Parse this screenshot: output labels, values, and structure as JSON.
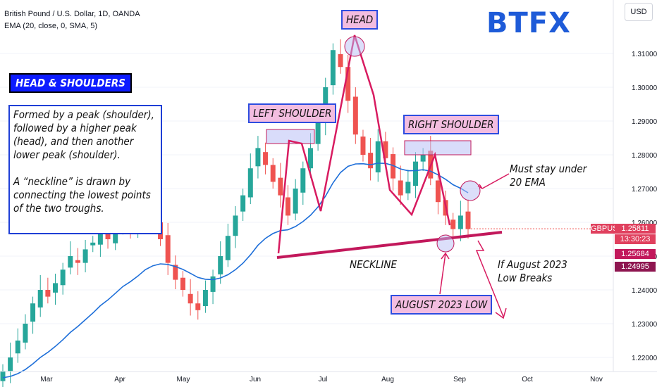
{
  "header": {
    "symbol_line": "British Pound / U.S. Dollar, 1D, OANDA",
    "indicator_line": "EMA (20, close, 0, SMA, 5)"
  },
  "logo": "BTFX",
  "currency": "USD",
  "annotations": {
    "title": "HEAD & SHOULDERS",
    "desc1": "Formed by a peak (shoulder), followed by a higher peak (head), and then another lower peak (shoulder).",
    "desc2": "A “neckline” is drawn by connecting the lowest points of the two troughs.",
    "head": "HEAD",
    "left_shoulder": "LEFT SHOULDER",
    "right_shoulder": "RIGHT SHOULDER",
    "must_stay": "Must stay under 20 EMA",
    "neckline": "NECKLINE",
    "if_breaks": "If August 2023 Low Breaks",
    "aug_low": "AUGUST 2023 LOW"
  },
  "price_tags": {
    "symbol": "GBPUSD",
    "last": "1.25811",
    "countdown": "13:30:23",
    "level1": "1.25684",
    "level2": "1.24995"
  },
  "colors": {
    "bull": "#26a69a",
    "bear": "#ef5350",
    "ema": "#1e6fd9",
    "pattern": "#d81b60",
    "neckline": "#c2185b",
    "highlight": "#b9c0f5"
  },
  "chart_data": {
    "type": "candlestick",
    "title": "British Pound / U.S. Dollar, 1D, OANDA",
    "x_ticks": [
      "Mar",
      "Apr",
      "May",
      "Jun",
      "Jul",
      "Aug",
      "Sep",
      "Oct",
      "Nov"
    ],
    "y_ticks": [
      "1.22000",
      "1.23000",
      "1.24000",
      "1.25000",
      "1.26000",
      "1.27000",
      "1.28000",
      "1.29000",
      "1.30000",
      "1.31000"
    ],
    "ylim": [
      1.218,
      1.318
    ],
    "approx_closes": [
      1.216,
      1.22,
      1.225,
      1.23,
      1.236,
      1.24,
      1.238,
      1.242,
      1.246,
      1.25,
      1.248,
      1.252,
      1.254,
      1.258,
      1.255,
      1.26,
      1.262,
      1.258,
      1.262,
      1.266,
      1.26,
      1.255,
      1.248,
      1.243,
      1.24,
      1.236,
      1.234,
      1.24,
      1.244,
      1.25,
      1.256,
      1.262,
      1.268,
      1.276,
      1.282,
      1.277,
      1.272,
      1.268,
      1.262,
      1.27,
      1.276,
      1.282,
      1.29,
      1.3,
      1.311,
      1.306,
      1.296,
      1.286,
      1.28,
      1.276,
      1.284,
      1.279,
      1.273,
      1.268,
      1.272,
      1.278,
      1.28,
      1.273,
      1.266,
      1.262,
      1.258,
      1.262,
      1.258
    ],
    "ema_label": "EMA (20, close, 0, SMA, 5)",
    "neckline": "NECKLINE",
    "last_price": 1.25811
  }
}
